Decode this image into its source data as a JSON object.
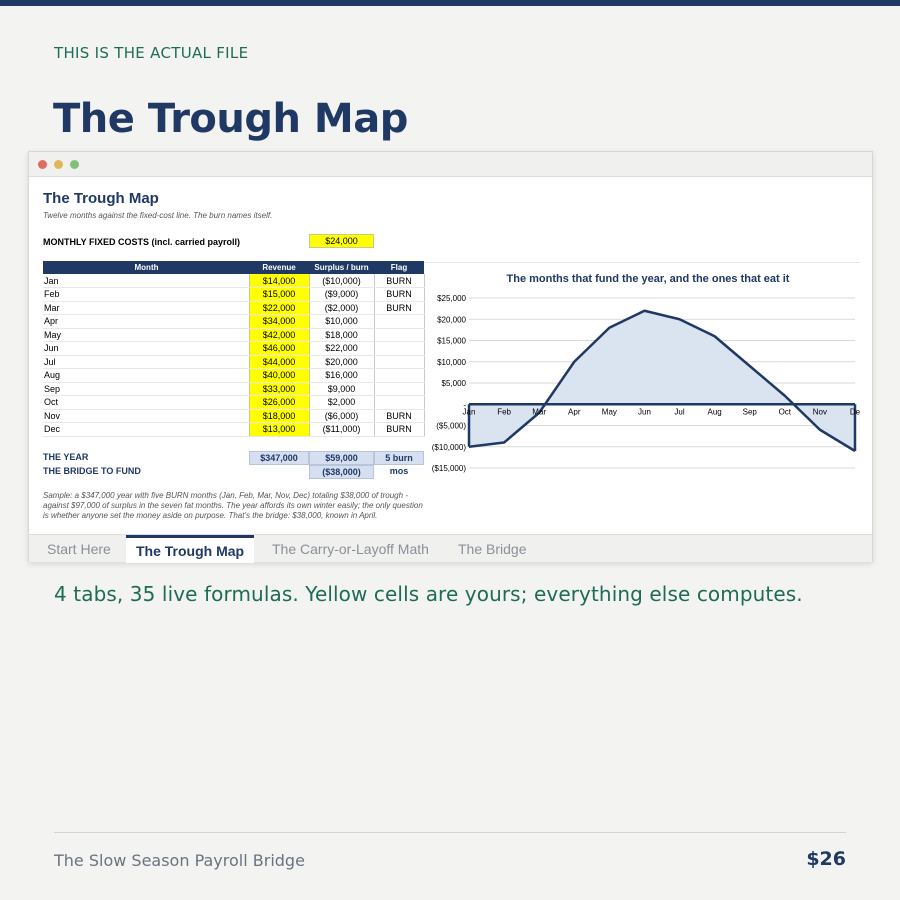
{
  "eyebrow": "THIS IS THE ACTUAL FILE",
  "headline": "The Trough Map",
  "sheet": {
    "title": "The Trough Map",
    "subtitle": "Twelve months against the fixed-cost line. The burn names itself.",
    "fixed_costs_label": "MONTHLY FIXED COSTS (incl. carried payroll)",
    "fixed_costs_value": "$24,000",
    "columns": [
      "Month",
      "Revenue",
      "Surplus / burn",
      "Flag"
    ],
    "rows": [
      {
        "month": "Jan",
        "revenue": "$14,000",
        "surplus": "($10,000)",
        "flag": "BURN"
      },
      {
        "month": "Feb",
        "revenue": "$15,000",
        "surplus": "($9,000)",
        "flag": "BURN"
      },
      {
        "month": "Mar",
        "revenue": "$22,000",
        "surplus": "($2,000)",
        "flag": "BURN"
      },
      {
        "month": "Apr",
        "revenue": "$34,000",
        "surplus": "$10,000",
        "flag": ""
      },
      {
        "month": "May",
        "revenue": "$42,000",
        "surplus": "$18,000",
        "flag": ""
      },
      {
        "month": "Jun",
        "revenue": "$46,000",
        "surplus": "$22,000",
        "flag": ""
      },
      {
        "month": "Jul",
        "revenue": "$44,000",
        "surplus": "$20,000",
        "flag": ""
      },
      {
        "month": "Aug",
        "revenue": "$40,000",
        "surplus": "$16,000",
        "flag": ""
      },
      {
        "month": "Sep",
        "revenue": "$33,000",
        "surplus": "$9,000",
        "flag": ""
      },
      {
        "month": "Oct",
        "revenue": "$26,000",
        "surplus": "$2,000",
        "flag": ""
      },
      {
        "month": "Nov",
        "revenue": "$18,000",
        "surplus": "($6,000)",
        "flag": "BURN"
      },
      {
        "month": "Dec",
        "revenue": "$13,000",
        "surplus": "($11,000)",
        "flag": "BURN"
      }
    ],
    "year_label": "THE YEAR",
    "year_revenue": "$347,000",
    "year_surplus": "$59,000",
    "year_flag": "5 burn mos",
    "bridge_label": "THE BRIDGE TO FUND",
    "bridge_value": "($38,000)",
    "note": "Sample: a $347,000 year with five BURN months (Jan, Feb, Mar, Nov, Dec) totaling $38,000 of trough - against $97,000 of surplus in the seven fat months. The year affords its own winter easily; the only question is whether anyone set the money aside on purpose. That's the bridge: $38,000, known in April."
  },
  "chart_data": {
    "type": "area",
    "title": "The months that fund the year, and the ones that eat it",
    "categories": [
      "Jan",
      "Feb",
      "Mar",
      "Apr",
      "May",
      "Jun",
      "Jul",
      "Aug",
      "Sep",
      "Oct",
      "Nov",
      "Dec"
    ],
    "category_labels": [
      "Jan",
      "Feb",
      "Mar",
      "Apr",
      "May",
      "Jun",
      "Jul",
      "Aug",
      "Sep",
      "Oct",
      "Nov",
      "De"
    ],
    "values": [
      -10000,
      -9000,
      -2000,
      10000,
      18000,
      22000,
      20000,
      16000,
      9000,
      2000,
      -6000,
      -11000
    ],
    "ylim": [
      -15000,
      25000
    ],
    "yticks": [
      25000,
      20000,
      15000,
      10000,
      5000,
      0,
      -5000,
      -10000,
      -15000
    ],
    "ytick_labels": [
      "$25,000",
      "$20,000",
      "$15,000",
      "$10,000",
      "$5,000",
      "-",
      "($5,000)",
      "($10,000)",
      "($15,000)"
    ],
    "grid": true,
    "line_color": "#1f3864",
    "fill_color": "#dae3f0"
  },
  "tabs": [
    {
      "label": "Start Here",
      "active": false
    },
    {
      "label": "The Trough Map",
      "active": true
    },
    {
      "label": "The Carry-or-Layoff Math",
      "active": false
    },
    {
      "label": "The Bridge",
      "active": false
    }
  ],
  "caption": "4 tabs, 35 live formulas. Yellow cells are yours; everything else computes.",
  "footer": {
    "product": "The Slow Season Payroll Bridge",
    "price": "$26"
  }
}
